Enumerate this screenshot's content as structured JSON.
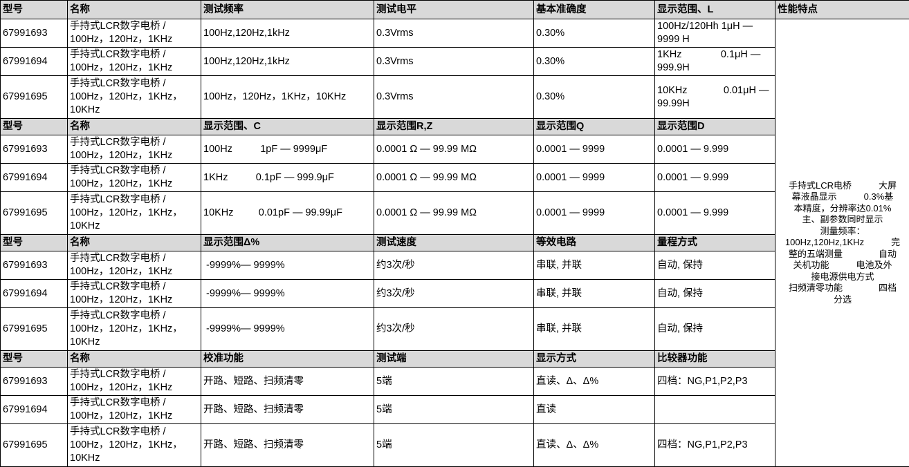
{
  "features_header": "性能特点",
  "features_lines": [
    "手持式LCR电桥　　　大屏",
    "幕液晶显示　　　0.3%基",
    "本精度，分辨率达0.01%",
    "主、副参数同时显示",
    "测量频率：",
    "100Hz,120Hz,1KHz　　　完",
    "整的五端测量　　　　自动",
    "关机功能　　　电池及外",
    "接电源供电方式",
    "扫频清零功能　　　　四档",
    "分选"
  ],
  "sections": [
    {
      "header": [
        "型号",
        "名称",
        "测试频率",
        "测试电平",
        "基本准确度",
        "显示范围、L"
      ],
      "rows": [
        [
          "67991693",
          "手持式LCR数字电桥 / 100Hz，120Hz，1KHz",
          "100Hz,120Hz,1kHz",
          "0.3Vrms",
          "0.30%",
          "100Hz/120Hh 1μH —9999 H"
        ],
        [
          "67991694",
          "手持式LCR数字电桥 / 100Hz，120Hz，1KHz",
          "100Hz,120Hz,1kHz",
          "0.3Vrms",
          "0.30%",
          "1KHz              0.1μH —999.9H"
        ],
        [
          "67991695",
          "手持式LCR数字电桥 / 100Hz，120Hz，1KHz，10KHz",
          "100Hz，120Hz，1KHz，10KHz",
          "0.3Vrms",
          "0.30%",
          "10KHz             0.01μH —99.99H"
        ]
      ]
    },
    {
      "header": [
        "型号",
        "名称",
        "显示范围、C",
        "显示范围R,Z",
        "显示范围Q",
        "显示范围D"
      ],
      "rows": [
        [
          "67991693",
          "手持式LCR数字电桥 / 100Hz，120Hz，1KHz",
          "100Hz          1pF — 9999μF",
          "0.0001 Ω — 99.99 MΩ",
          "0.0001 — 9999",
          "0.0001 — 9.999"
        ],
        [
          "67991694",
          "手持式LCR数字电桥 / 100Hz，120Hz，1KHz",
          "1KHz          0.1pF — 999.9μF",
          "0.0001 Ω — 99.99 MΩ",
          "0.0001 — 9999",
          "0.0001 — 9.999"
        ],
        [
          "67991695",
          "手持式LCR数字电桥 / 100Hz，120Hz，1KHz，10KHz",
          "10KHz         0.01pF — 99.99μF",
          "0.0001 Ω — 99.99 MΩ",
          "0.0001 — 9999",
          "0.0001 — 9.999"
        ]
      ]
    },
    {
      "header": [
        "型号",
        "名称",
        "显示范围Δ%",
        "测试速度",
        "等效电路",
        "量程方式"
      ],
      "rows": [
        [
          "67991693",
          "手持式LCR数字电桥 / 100Hz，120Hz，1KHz",
          " -9999%— 9999%",
          "约3次/秒",
          "串联, 并联",
          "自动, 保持"
        ],
        [
          "67991694",
          "手持式LCR数字电桥 / 100Hz，120Hz，1KHz",
          " -9999%— 9999%",
          "约3次/秒",
          "串联, 并联",
          "自动, 保持"
        ],
        [
          "67991695",
          "手持式LCR数字电桥 / 100Hz，120Hz，1KHz，10KHz",
          " -9999%— 9999%",
          "约3次/秒",
          "串联, 并联",
          "自动, 保持"
        ]
      ]
    },
    {
      "header": [
        "型号",
        "名称",
        "校准功能",
        "测试端",
        "显示方式",
        "比较器功能"
      ],
      "rows": [
        [
          "67991693",
          "手持式LCR数字电桥 / 100Hz，120Hz，1KHz",
          "开路、短路、扫频清零",
          "5端",
          "直读、Δ、Δ%",
          "四档：NG,P1,P2,P3"
        ],
        [
          "67991694",
          "手持式LCR数字电桥 / 100Hz，120Hz，1KHz",
          "开路、短路、扫频清零",
          "5端",
          "直读",
          ""
        ],
        [
          "67991695",
          "手持式LCR数字电桥 / 100Hz，120Hz，1KHz，10KHz",
          "开路、短路、扫频清零",
          "5端",
          "直读、Δ、Δ%",
          "四档：NG,P1,P2,P3"
        ]
      ]
    }
  ]
}
